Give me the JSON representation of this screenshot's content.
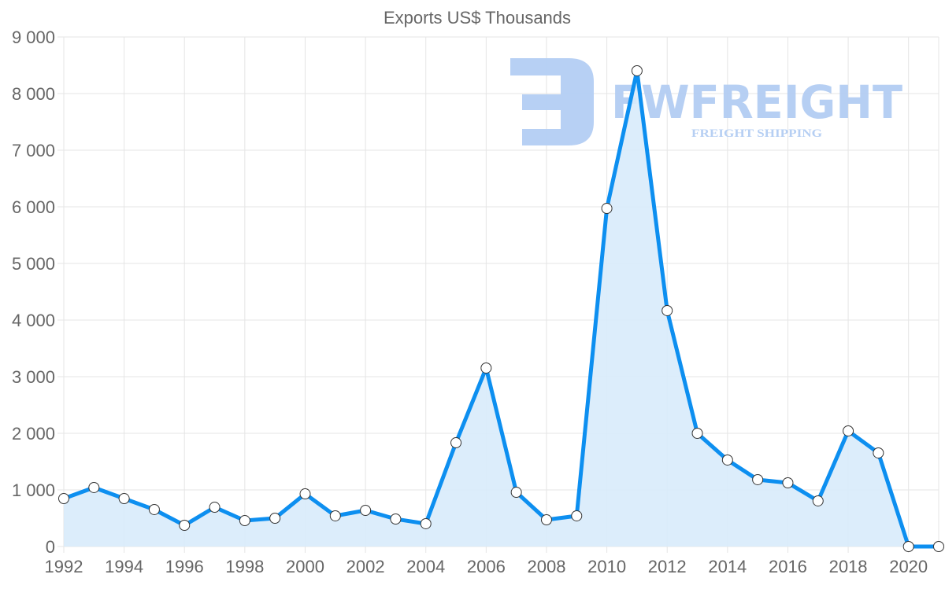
{
  "chart_data": {
    "type": "line",
    "title": "Exports US$ Thousands",
    "xlabel": "",
    "ylabel": "",
    "x": [
      1992,
      1993,
      1994,
      1995,
      1996,
      1997,
      1998,
      1999,
      2000,
      2001,
      2002,
      2003,
      2004,
      2005,
      2006,
      2007,
      2008,
      2009,
      2010,
      2011,
      2012,
      2013,
      2014,
      2015,
      2016,
      2017,
      2018,
      2019,
      2020,
      2021
    ],
    "series": [
      {
        "name": "Exports US$ Thousands",
        "values": [
          847,
          1042,
          847,
          653,
          375,
          694,
          458,
          500,
          930,
          542,
          639,
          486,
          403,
          1833,
          3153,
          958,
          472,
          542,
          5972,
          8403,
          4167,
          2000,
          1528,
          1181,
          1125,
          806,
          2042,
          1653,
          0,
          0
        ]
      }
    ],
    "xlim": [
      1992,
      2021
    ],
    "ylim": [
      0,
      9000
    ],
    "x_ticks": [
      "1992",
      "1994",
      "1996",
      "1998",
      "2000",
      "2002",
      "2004",
      "2006",
      "2008",
      "2010",
      "2012",
      "2014",
      "2016",
      "2018",
      "2020"
    ],
    "y_ticks": [
      "0",
      "1 000",
      "2 000",
      "3 000",
      "4 000",
      "5 000",
      "6 000",
      "7 000",
      "8 000",
      "9 000"
    ],
    "grid": true,
    "fill": true,
    "colors": {
      "line": "#0d8ff0",
      "fill": "#d8ebfb",
      "grid": "#e5e5e5",
      "watermark": "#b3cdf3"
    }
  },
  "watermark": {
    "brand": "FWFREIGHT",
    "tagline": "FREIGHT SHIPPING"
  }
}
